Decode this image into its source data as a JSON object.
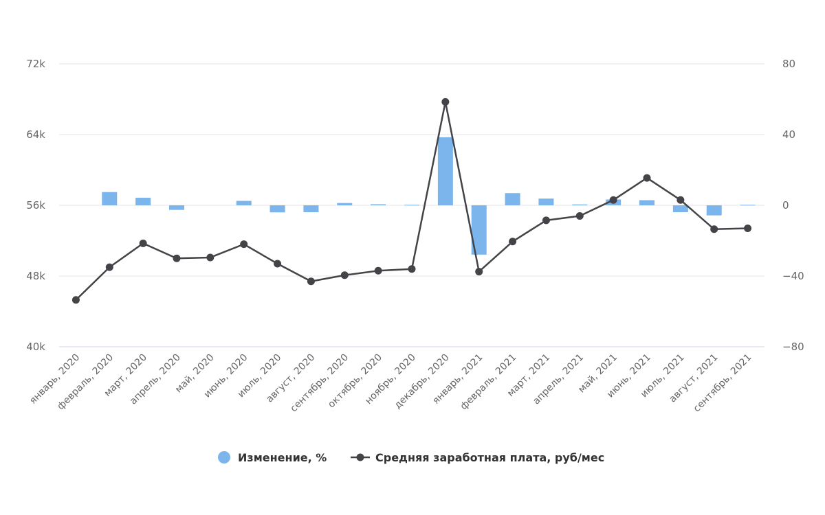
{
  "chart_data": {
    "type": "bar+line",
    "categories": [
      "январь, 2020",
      "февраль, 2020",
      "март, 2020",
      "апрель, 2020",
      "май, 2020",
      "июнь, 2020",
      "июль, 2020",
      "август, 2020",
      "сентябрь, 2020",
      "октябрь, 2020",
      "ноябрь, 2020",
      "декабрь, 2020",
      "январь, 2021",
      "февраль, 2021",
      "март, 2021",
      "апрель, 2021",
      "май, 2021",
      "июнь, 2021",
      "июль, 2021",
      "август, 2021",
      "сентябрь, 2021"
    ],
    "series": [
      {
        "name": "Изменение, %",
        "kind": "bar",
        "axis": "right",
        "color": "#7cb5ec",
        "values": [
          null,
          7.5,
          4.3,
          -2.6,
          0,
          2.5,
          -4.0,
          -3.9,
          1.3,
          0.6,
          0.3,
          38.5,
          -27.9,
          6.9,
          3.8,
          0.5,
          3.3,
          2.9,
          -3.9,
          -5.7,
          0.3
        ]
      },
      {
        "name": "Средняя заработная плата, руб/мес",
        "kind": "line",
        "axis": "left",
        "color": "#434348",
        "values": [
          45300,
          49000,
          51700,
          50000,
          50100,
          51600,
          49400,
          47400,
          48100,
          48600,
          48800,
          67700,
          48500,
          51900,
          54300,
          54800,
          56600,
          59100,
          56600,
          53300,
          53400
        ]
      }
    ],
    "y_left": {
      "ticks": [
        "40k",
        "48k",
        "56k",
        "64k",
        "72k"
      ],
      "min": 40000,
      "max": 72000,
      "step": 8000
    },
    "y_right": {
      "ticks": [
        "−80",
        "−40",
        "0",
        "40",
        "80"
      ],
      "min": -80,
      "max": 80,
      "step": 40
    },
    "grid": true,
    "legend_position": "bottom"
  }
}
